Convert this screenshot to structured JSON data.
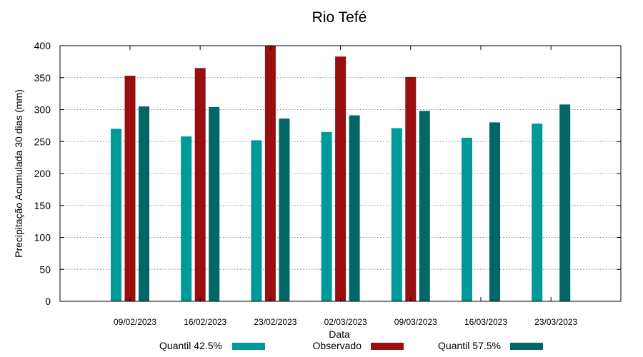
{
  "chart_data": {
    "type": "bar",
    "title": "Rio Tefé",
    "xlabel": "Data",
    "ylabel": "Precipitação Acumulada 30 dias (mm)",
    "ylim": [
      0,
      400
    ],
    "yticks": [
      0,
      50,
      100,
      150,
      200,
      250,
      300,
      350,
      400
    ],
    "grid": true,
    "legend_position": "bottom",
    "categories": [
      "09/02/2023",
      "16/02/2023",
      "23/02/2023",
      "02/03/2023",
      "09/03/2023",
      "16/03/2023",
      "23/03/2023"
    ],
    "series": [
      {
        "name": "Quantil 42.5%",
        "color": "#009999",
        "values": [
          270,
          258,
          252,
          265,
          271,
          256,
          278
        ]
      },
      {
        "name": "Observado",
        "color": "#990f0f",
        "values": [
          353,
          365,
          400,
          383,
          351,
          null,
          null
        ]
      },
      {
        "name": "Quantil 57.5%",
        "color": "#006666",
        "values": [
          305,
          304,
          286,
          291,
          298,
          280,
          308
        ]
      }
    ]
  }
}
